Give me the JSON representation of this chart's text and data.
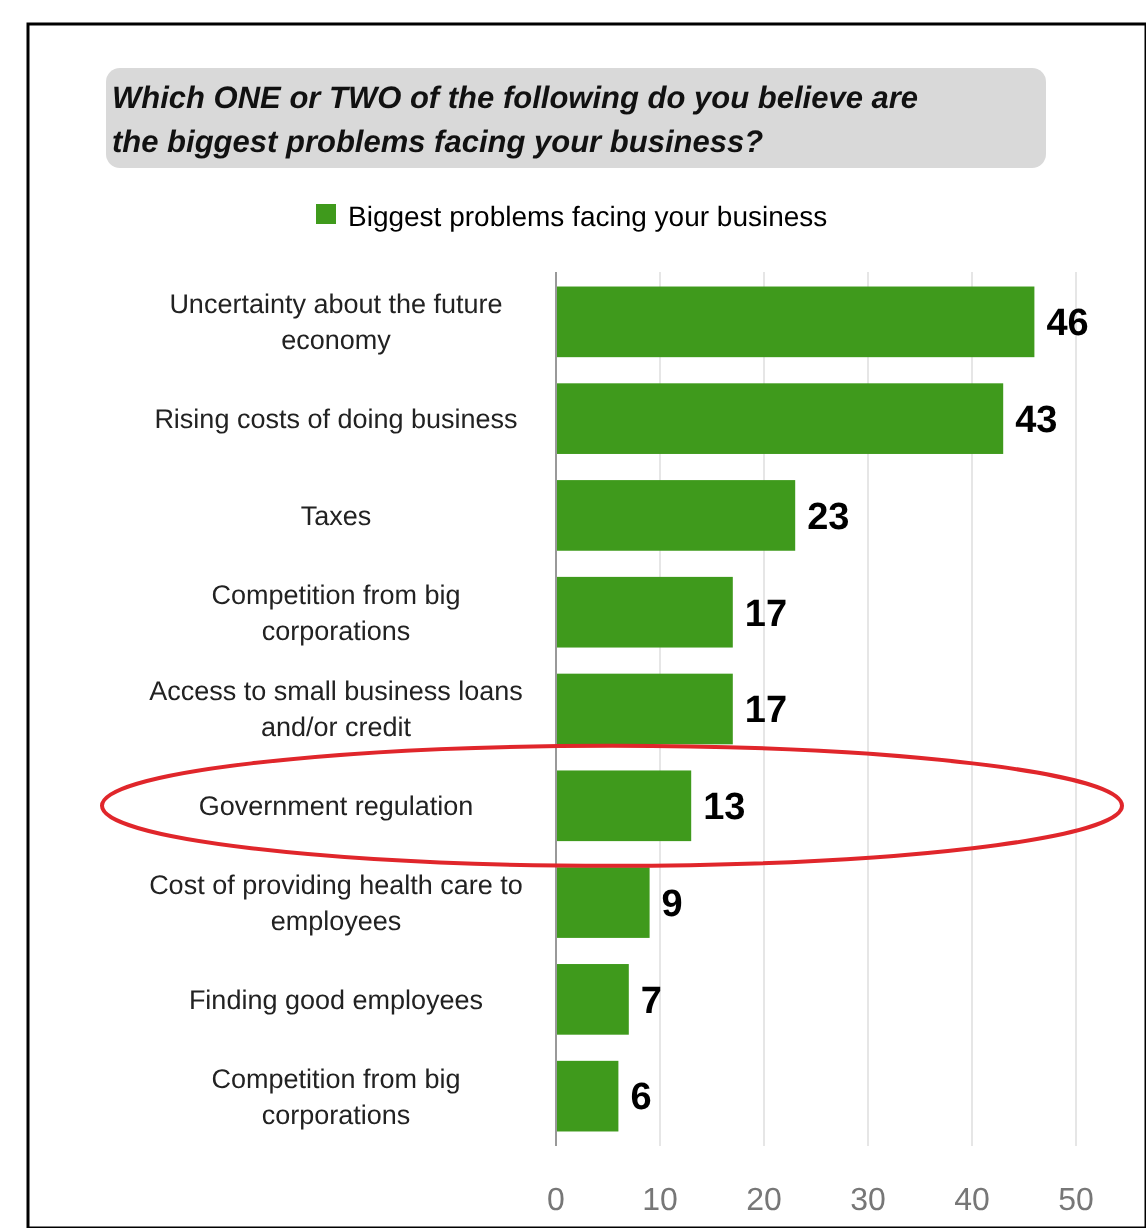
{
  "chart_data": {
    "type": "bar",
    "orientation": "horizontal",
    "title": "Which ONE or TWO of the following do you believe are the biggest problems facing your business?",
    "categories": [
      "Uncertainty about the future economy",
      "Rising costs of doing business",
      "Taxes",
      "Competition from big corporations",
      "Access to small business loans and/or credit",
      "Government regulation",
      "Cost of providing health care to employees",
      "Finding good employees",
      "Competition from big corporations"
    ],
    "series": [
      {
        "name": "Biggest problems facing your business",
        "color": "#3f9a1c",
        "values": [
          46,
          43,
          23,
          17,
          17,
          13,
          9,
          7,
          6
        ]
      }
    ],
    "xlim": [
      0,
      50
    ],
    "xticks": [
      0,
      10,
      20,
      30,
      40,
      50
    ],
    "grid": "x",
    "legend": "top",
    "data_labels": true
  }
}
